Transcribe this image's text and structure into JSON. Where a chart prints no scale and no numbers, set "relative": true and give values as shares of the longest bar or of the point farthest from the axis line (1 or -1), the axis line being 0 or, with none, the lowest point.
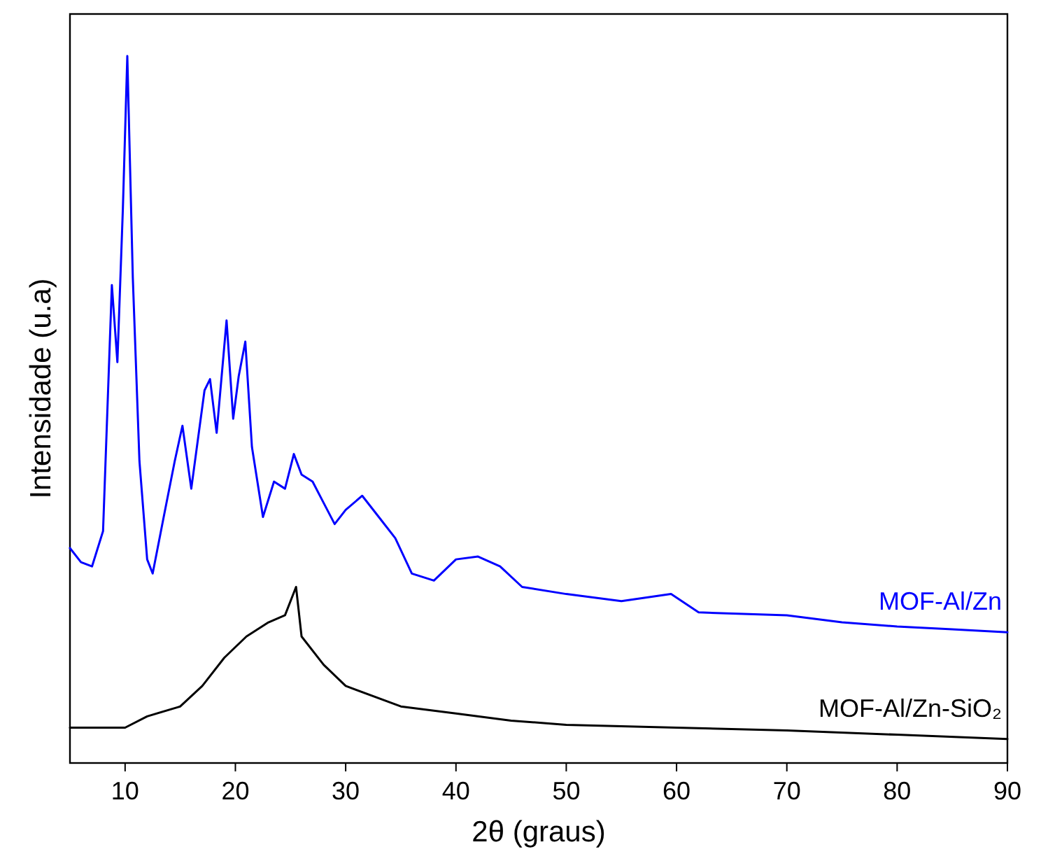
{
  "chart_data": {
    "type": "line",
    "relative": true,
    "xlabel": "2θ (graus)",
    "ylabel": "Intensidade (u.a)",
    "xlim": [
      5,
      90
    ],
    "xticks": [
      10,
      20,
      30,
      40,
      50,
      60,
      70,
      80,
      90
    ],
    "grid": false,
    "series": [
      {
        "name": "MOF-Al/Zn",
        "color": "#0000ff",
        "x": [
          5,
          6,
          7,
          8,
          8.8,
          9.3,
          9.8,
          10.2,
          10.7,
          11.3,
          12,
          12.5,
          13.5,
          14.5,
          15.2,
          16,
          17.2,
          17.7,
          18.3,
          19.2,
          19.8,
          20.3,
          20.9,
          21.5,
          22.5,
          23.5,
          24.5,
          25.3,
          26,
          27,
          28,
          29,
          30,
          31.5,
          33,
          34.5,
          36,
          38,
          40,
          42,
          44,
          46,
          50,
          55,
          59.5,
          62,
          70,
          75,
          80,
          85,
          90
        ],
        "values": [
          0.304,
          0.284,
          0.278,
          0.328,
          0.676,
          0.567,
          0.785,
          1,
          0.686,
          0.427,
          0.288,
          0.268,
          0.348,
          0.427,
          0.477,
          0.388,
          0.527,
          0.543,
          0.467,
          0.626,
          0.487,
          0.547,
          0.596,
          0.447,
          0.348,
          0.398,
          0.388,
          0.437,
          0.408,
          0.398,
          0.368,
          0.338,
          0.358,
          0.378,
          0.348,
          0.318,
          0.268,
          0.258,
          0.288,
          0.292,
          0.278,
          0.249,
          0.239,
          0.229,
          0.239,
          0.213,
          0.209,
          0.199,
          0.193,
          0.189,
          0.185
        ]
      },
      {
        "name": "MOF-Al/Zn-SiO₂",
        "color": "#000000",
        "x": [
          5,
          10,
          12,
          15,
          17,
          19,
          21,
          23,
          24.5,
          25.5,
          26,
          28,
          30,
          35,
          40,
          45,
          50,
          60,
          70,
          80,
          90
        ],
        "values": [
          0.05,
          0.05,
          0.066,
          0.08,
          0.109,
          0.149,
          0.179,
          0.199,
          0.209,
          0.249,
          0.179,
          0.139,
          0.109,
          0.08,
          0.07,
          0.06,
          0.054,
          0.05,
          0.046,
          0.04,
          0.034
        ]
      }
    ]
  }
}
